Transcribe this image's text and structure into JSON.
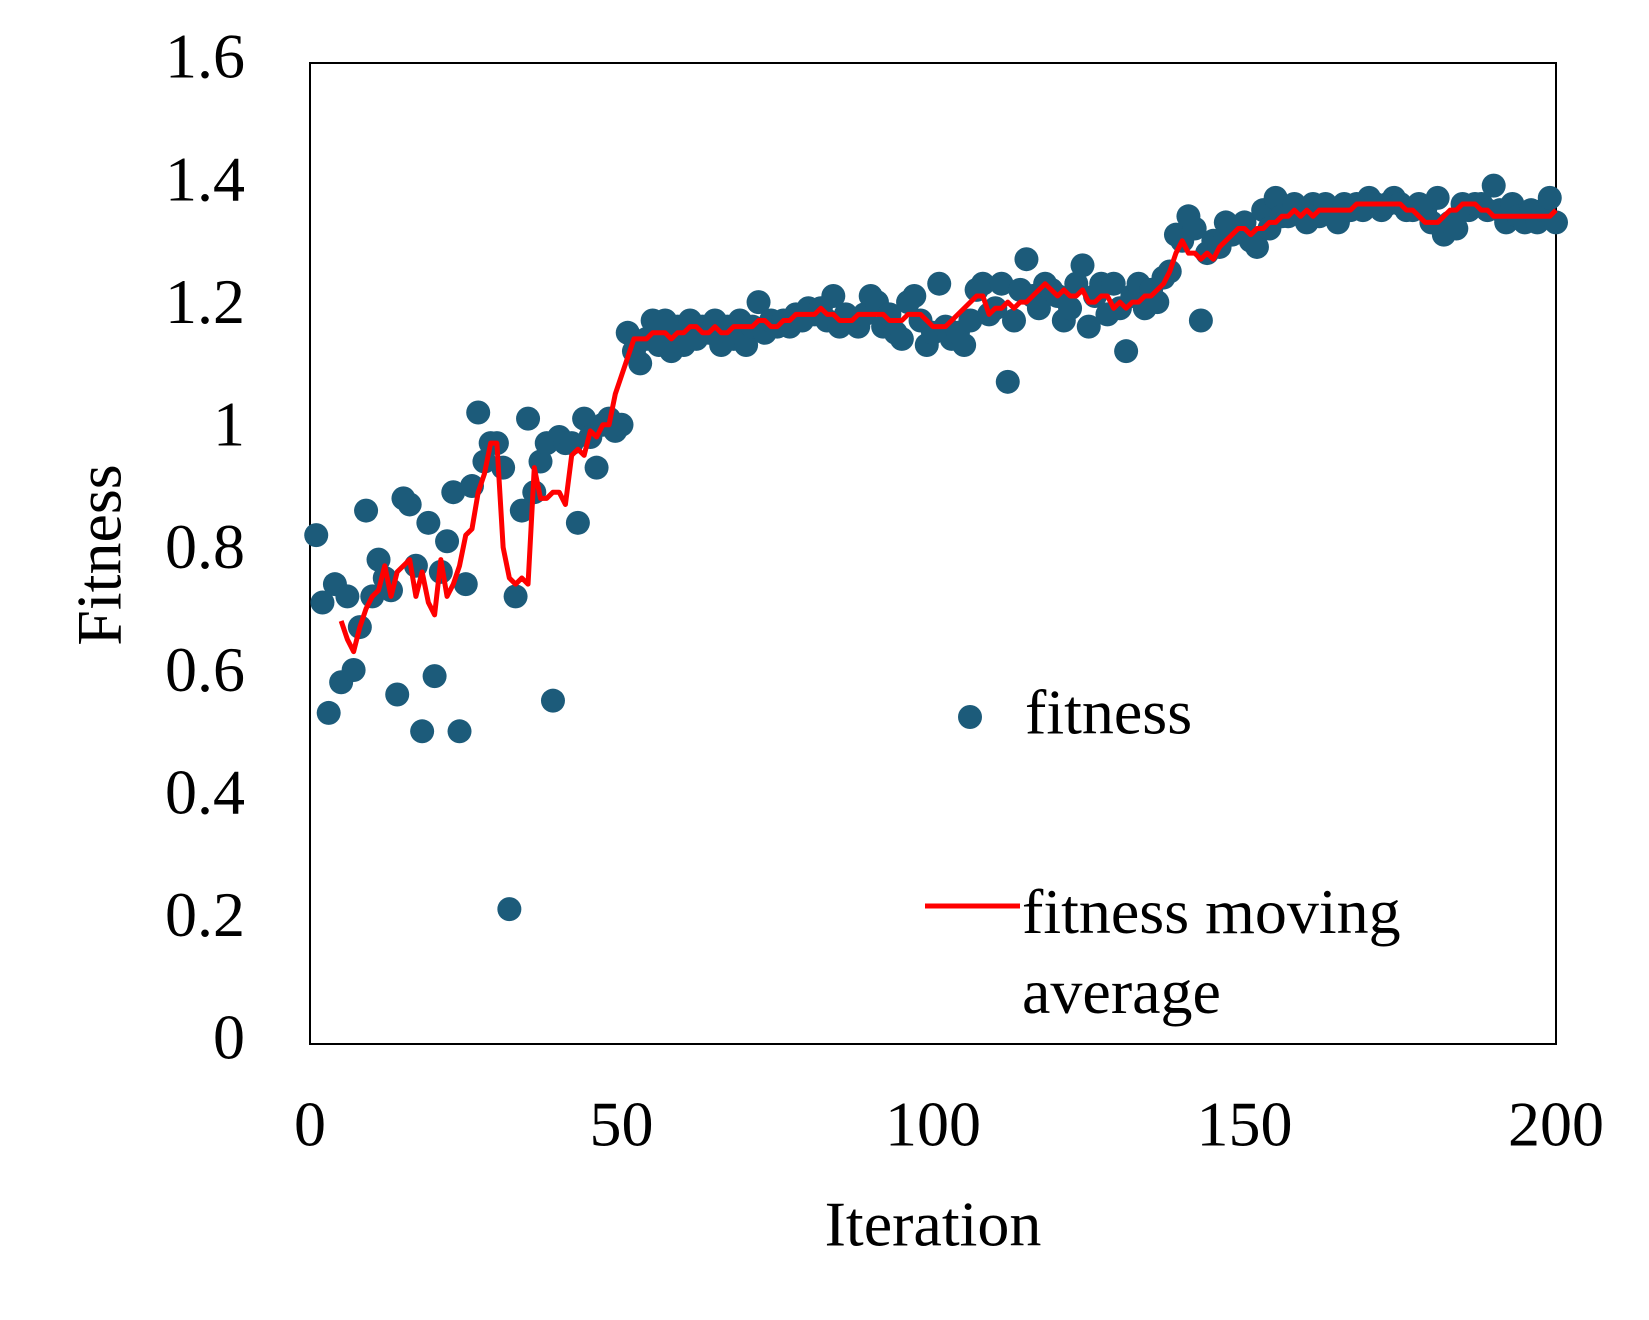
{
  "chart_data": {
    "type": "scatter-line",
    "xlabel": "Iteration",
    "ylabel": "Fitness",
    "xlim": [
      0,
      200
    ],
    "xticks": [
      0,
      50,
      100,
      150,
      200
    ],
    "ylim": [
      0,
      1.6
    ],
    "yticks": [
      0,
      0.2,
      0.4,
      0.6,
      0.8,
      1,
      1.2,
      1.4,
      1.6
    ],
    "x": [
      1,
      2,
      3,
      4,
      5,
      6,
      7,
      8,
      9,
      10,
      11,
      12,
      13,
      14,
      15,
      16,
      17,
      18,
      19,
      20,
      21,
      22,
      23,
      24,
      25,
      26,
      27,
      28,
      29,
      30,
      31,
      32,
      33,
      34,
      35,
      36,
      37,
      38,
      39,
      40,
      41,
      42,
      43,
      44,
      45,
      46,
      47,
      48,
      49,
      50,
      51,
      52,
      53,
      54,
      55,
      56,
      57,
      58,
      59,
      60,
      61,
      62,
      63,
      64,
      65,
      66,
      67,
      68,
      69,
      70,
      71,
      72,
      73,
      74,
      75,
      76,
      77,
      78,
      79,
      80,
      81,
      82,
      83,
      84,
      85,
      86,
      87,
      88,
      89,
      90,
      91,
      92,
      93,
      94,
      95,
      96,
      97,
      98,
      99,
      100,
      101,
      102,
      103,
      104,
      105,
      106,
      107,
      108,
      109,
      110,
      111,
      112,
      113,
      114,
      115,
      116,
      117,
      118,
      119,
      120,
      121,
      122,
      123,
      124,
      125,
      126,
      127,
      128,
      129,
      130,
      131,
      132,
      133,
      134,
      135,
      136,
      137,
      138,
      139,
      140,
      141,
      142,
      143,
      144,
      145,
      146,
      147,
      148,
      149,
      150,
      151,
      152,
      153,
      154,
      155,
      156,
      157,
      158,
      159,
      160,
      161,
      162,
      163,
      164,
      165,
      166,
      167,
      168,
      169,
      170,
      171,
      172,
      173,
      174,
      175,
      176,
      177,
      178,
      179,
      180,
      181,
      182,
      183,
      184,
      185,
      186,
      187,
      188,
      189,
      190,
      191,
      192,
      193,
      194,
      195,
      196,
      197,
      198,
      199,
      200
    ],
    "series": [
      {
        "name": "fitness",
        "kind": "scatter",
        "color": "#1c5b7a",
        "values": [
          0.83,
          0.72,
          0.54,
          0.75,
          0.59,
          0.73,
          0.61,
          0.68,
          0.87,
          0.73,
          0.79,
          0.76,
          0.74,
          0.57,
          0.89,
          0.88,
          0.78,
          0.51,
          0.85,
          0.6,
          0.77,
          0.82,
          0.9,
          0.51,
          0.75,
          0.91,
          1.03,
          0.95,
          0.98,
          0.98,
          0.94,
          0.22,
          0.73,
          0.87,
          1.02,
          0.9,
          0.95,
          0.98,
          0.56,
          0.99,
          0.98,
          0.98,
          0.85,
          1.02,
          0.99,
          0.94,
          1.01,
          1.02,
          1.0,
          1.01,
          1.16,
          1.13,
          1.11,
          1.15,
          1.18,
          1.14,
          1.18,
          1.13,
          1.17,
          1.14,
          1.18,
          1.15,
          1.17,
          1.16,
          1.18,
          1.14,
          1.17,
          1.15,
          1.18,
          1.14,
          1.17,
          1.21,
          1.16,
          1.18,
          1.17,
          1.18,
          1.17,
          1.19,
          1.18,
          1.2,
          1.19,
          1.2,
          1.18,
          1.22,
          1.17,
          1.19,
          1.18,
          1.17,
          1.19,
          1.22,
          1.21,
          1.17,
          1.19,
          1.16,
          1.15,
          1.21,
          1.22,
          1.18,
          1.14,
          1.16,
          1.24,
          1.17,
          1.15,
          1.16,
          1.14,
          1.18,
          1.23,
          1.24,
          1.19,
          1.2,
          1.24,
          1.08,
          1.18,
          1.23,
          1.28,
          1.22,
          1.2,
          1.24,
          1.23,
          1.22,
          1.18,
          1.2,
          1.24,
          1.27,
          1.17,
          1.22,
          1.24,
          1.19,
          1.24,
          1.2,
          1.13,
          1.22,
          1.24,
          1.2,
          1.23,
          1.21,
          1.25,
          1.26,
          1.32,
          1.31,
          1.35,
          1.33,
          1.18,
          1.29,
          1.31,
          1.3,
          1.34,
          1.32,
          1.33,
          1.34,
          1.31,
          1.3,
          1.36,
          1.33,
          1.38,
          1.35,
          1.35,
          1.37,
          1.36,
          1.34,
          1.37,
          1.35,
          1.37,
          1.36,
          1.34,
          1.37,
          1.36,
          1.37,
          1.36,
          1.38,
          1.37,
          1.36,
          1.37,
          1.38,
          1.37,
          1.36,
          1.36,
          1.37,
          1.36,
          1.34,
          1.38,
          1.32,
          1.34,
          1.33,
          1.37,
          1.36,
          1.37,
          1.37,
          1.36,
          1.4,
          1.36,
          1.34,
          1.37,
          1.35,
          1.34,
          1.36,
          1.34,
          1.36,
          1.38,
          1.34
        ]
      },
      {
        "name": "fitness moving average",
        "kind": "line",
        "color": "#ff0000",
        "values": [
          null,
          null,
          null,
          null,
          0.69,
          0.66,
          0.64,
          0.68,
          0.71,
          0.73,
          0.74,
          0.78,
          0.73,
          0.77,
          0.78,
          0.79,
          0.73,
          0.77,
          0.72,
          0.7,
          0.79,
          0.73,
          0.75,
          0.78,
          0.83,
          0.84,
          0.9,
          0.93,
          0.98,
          0.98,
          0.81,
          0.76,
          0.75,
          0.76,
          0.75,
          0.94,
          0.89,
          0.89,
          0.9,
          0.9,
          0.88,
          0.96,
          0.97,
          0.96,
          1.0,
          0.99,
          1.01,
          1.01,
          1.06,
          1.09,
          1.12,
          1.15,
          1.15,
          1.15,
          1.16,
          1.16,
          1.16,
          1.15,
          1.16,
          1.16,
          1.17,
          1.17,
          1.16,
          1.16,
          1.17,
          1.16,
          1.16,
          1.17,
          1.17,
          1.17,
          1.17,
          1.18,
          1.18,
          1.17,
          1.17,
          1.18,
          1.18,
          1.19,
          1.19,
          1.19,
          1.19,
          1.2,
          1.19,
          1.19,
          1.18,
          1.18,
          1.18,
          1.19,
          1.19,
          1.19,
          1.19,
          1.19,
          1.18,
          1.18,
          1.18,
          1.19,
          1.19,
          1.19,
          1.18,
          1.17,
          1.17,
          1.17,
          1.18,
          1.19,
          1.2,
          1.21,
          1.22,
          1.22,
          1.19,
          1.2,
          1.2,
          1.21,
          1.2,
          1.21,
          1.21,
          1.22,
          1.23,
          1.24,
          1.23,
          1.22,
          1.23,
          1.22,
          1.22,
          1.23,
          1.21,
          1.21,
          1.22,
          1.22,
          1.2,
          1.21,
          1.2,
          1.21,
          1.21,
          1.22,
          1.22,
          1.23,
          1.24,
          1.26,
          1.29,
          1.31,
          1.29,
          1.29,
          1.28,
          1.29,
          1.28,
          1.3,
          1.31,
          1.32,
          1.33,
          1.33,
          1.32,
          1.33,
          1.33,
          1.34,
          1.34,
          1.35,
          1.35,
          1.36,
          1.35,
          1.36,
          1.35,
          1.36,
          1.36,
          1.36,
          1.36,
          1.36,
          1.36,
          1.37,
          1.37,
          1.37,
          1.37,
          1.37,
          1.37,
          1.37,
          1.37,
          1.36,
          1.36,
          1.35,
          1.34,
          1.34,
          1.34,
          1.35,
          1.36,
          1.36,
          1.37,
          1.37,
          1.37,
          1.36,
          1.36,
          1.35,
          1.35,
          1.35,
          1.35,
          1.35,
          1.35,
          1.35,
          1.35,
          1.35,
          1.35,
          1.36
        ]
      }
    ]
  }
}
